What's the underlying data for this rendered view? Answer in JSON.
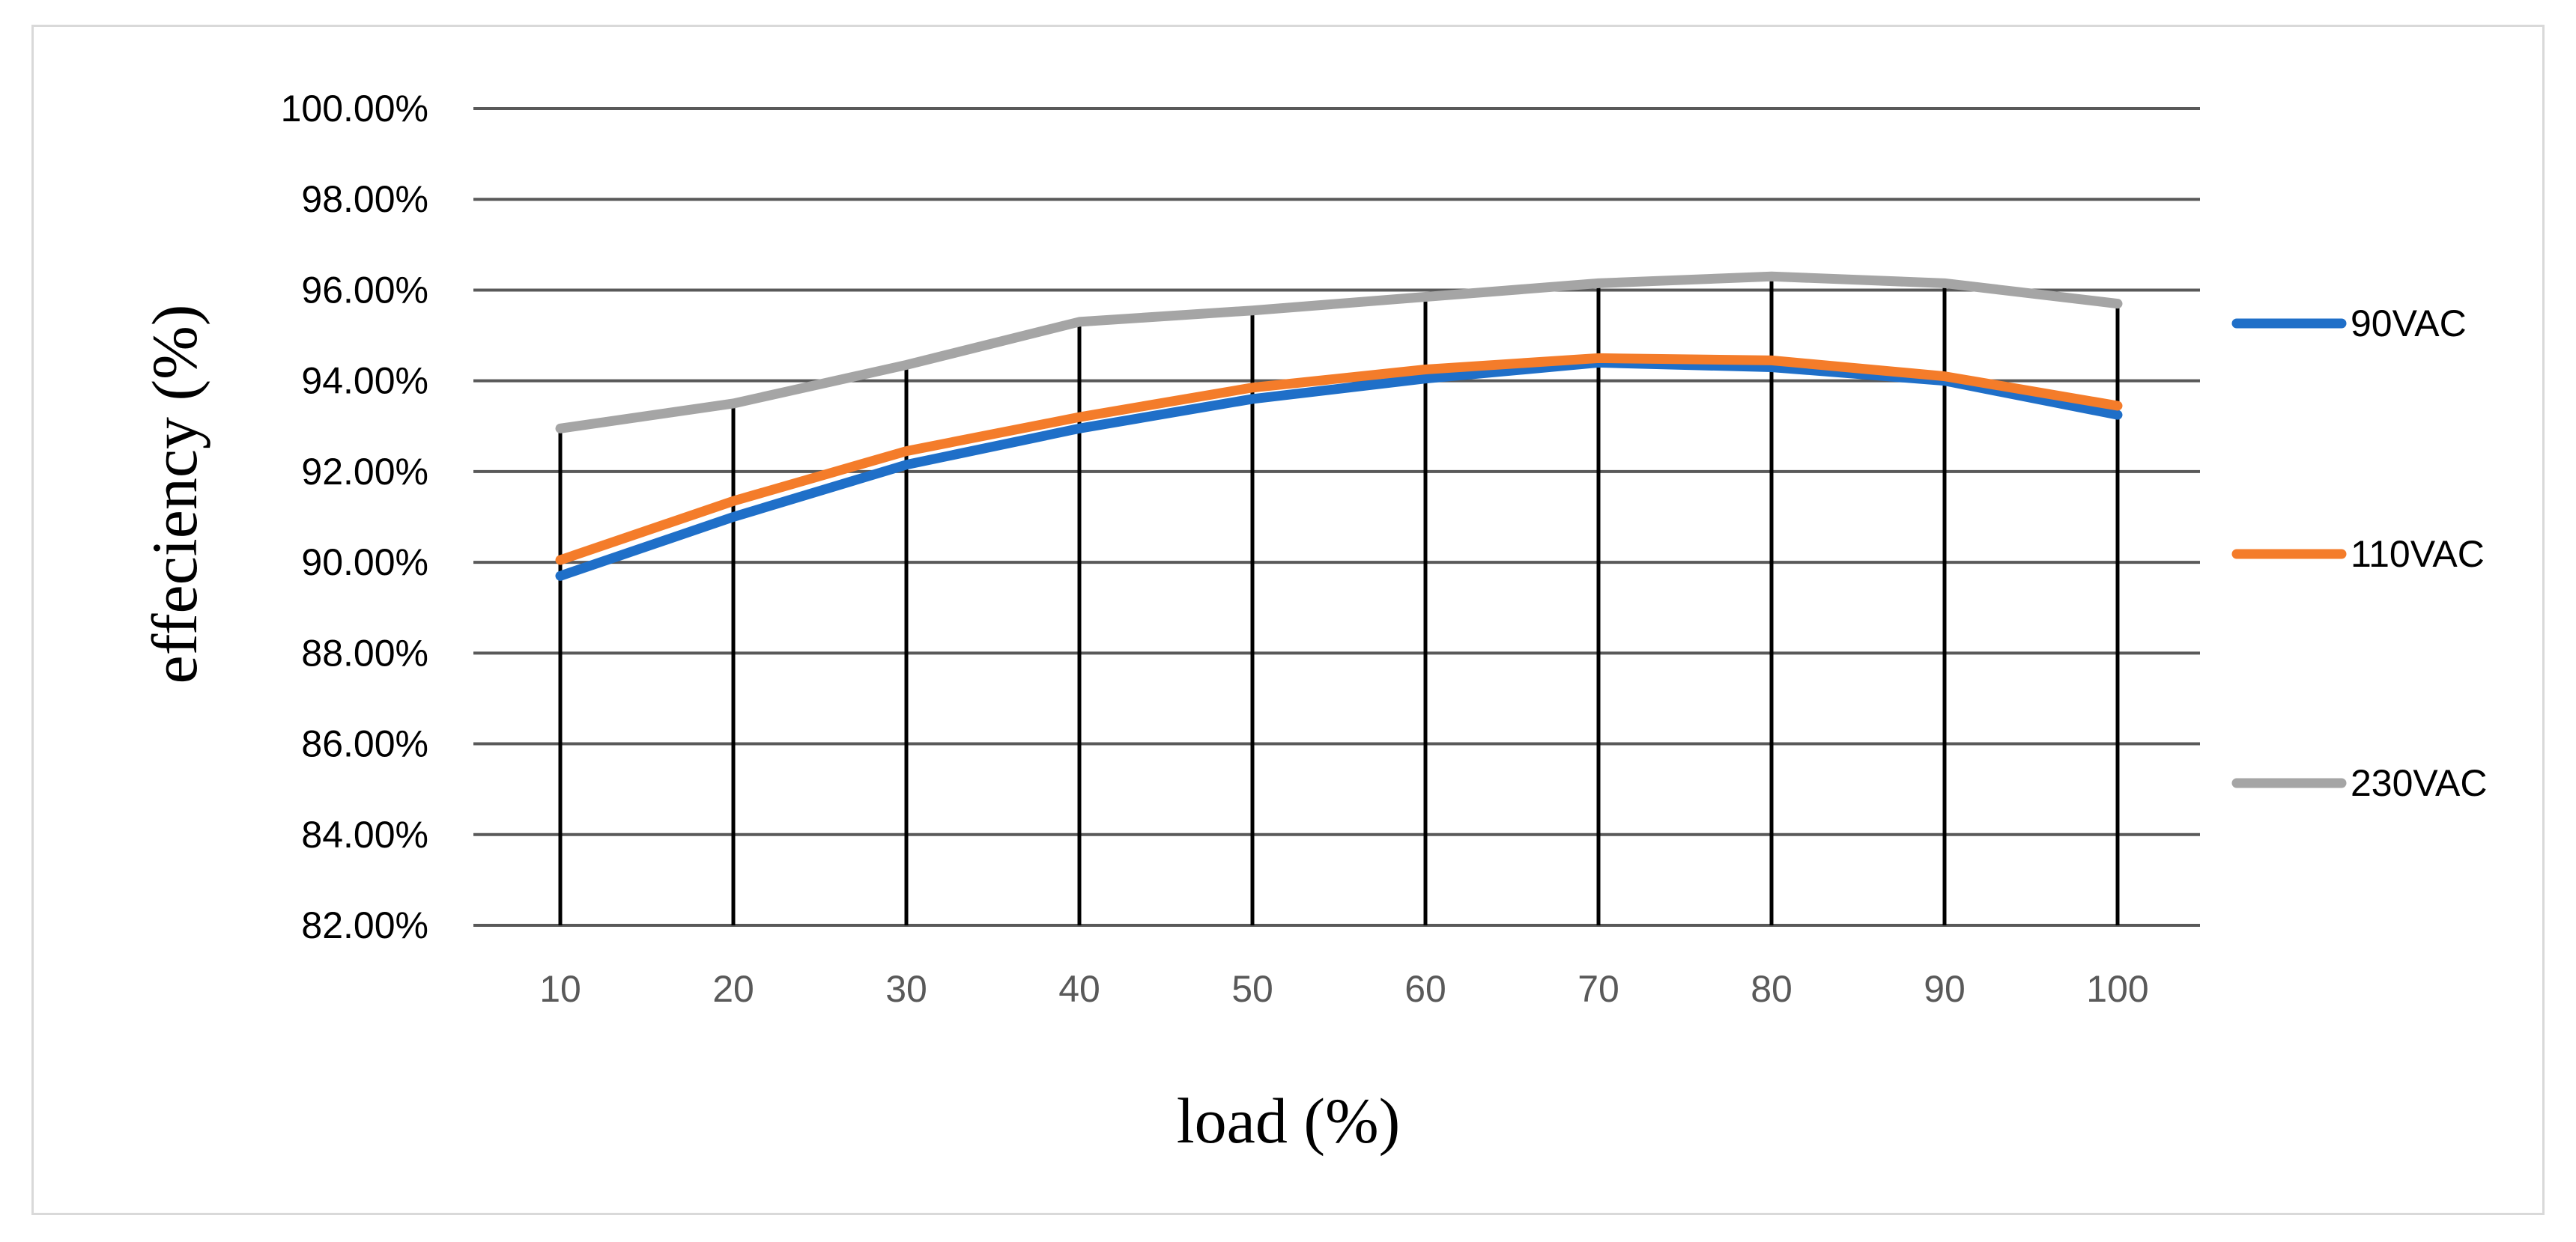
{
  "chart_data": {
    "type": "line",
    "title": "",
    "xlabel": "load (%)",
    "ylabel": "effeciency (%)",
    "categories": [
      "10",
      "20",
      "30",
      "40",
      "50",
      "60",
      "70",
      "80",
      "90",
      "100"
    ],
    "ylim": [
      82,
      100
    ],
    "y_ticks": [
      "100.00%",
      "98.00%",
      "96.00%",
      "94.00%",
      "92.00%",
      "90.00%",
      "88.00%",
      "86.00%",
      "84.00%",
      "82.00%"
    ],
    "y_tick_values": [
      100,
      98,
      96,
      94,
      92,
      90,
      88,
      86,
      84,
      82
    ],
    "grid": true,
    "drop_lines": true,
    "legend_position": "right",
    "series": [
      {
        "name": "90VAC",
        "color": "#1f6fc8",
        "values": [
          89.7,
          91.0,
          92.15,
          92.95,
          93.6,
          94.05,
          94.4,
          94.3,
          94.0,
          93.25
        ]
      },
      {
        "name": "110VAC",
        "color": "#f47c2a",
        "values": [
          90.05,
          91.35,
          92.45,
          93.2,
          93.85,
          94.25,
          94.5,
          94.45,
          94.1,
          93.45
        ]
      },
      {
        "name": "230VAC",
        "color": "#a5a5a5",
        "values": [
          92.95,
          93.5,
          94.35,
          95.3,
          95.55,
          95.85,
          96.15,
          96.3,
          96.15,
          95.7
        ]
      }
    ]
  }
}
